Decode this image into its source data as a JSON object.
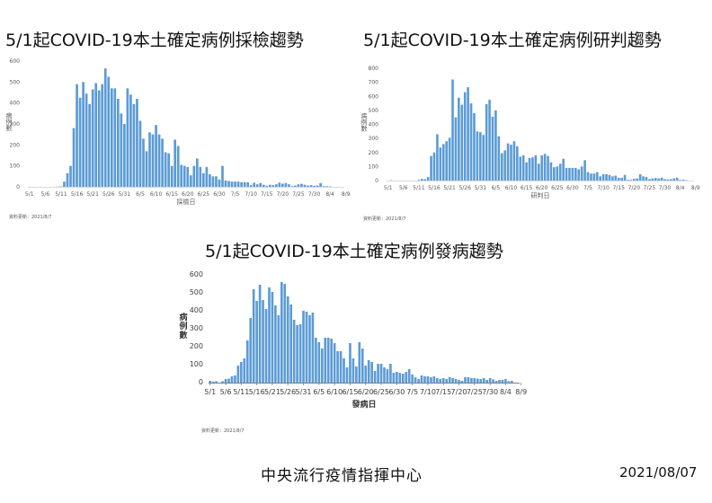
{
  "charts": {
    "testing": {
      "title": "5/1起COVID-19本土確定病例採檢趨勢",
      "ylabel": "病例數",
      "xlabel": "採檢日",
      "note": "資料更新：2021/8/7"
    },
    "confirm": {
      "title": "5/1起COVID-19本土確定病例研判趨勢",
      "ylabel": "病例數",
      "xlabel": "研判日",
      "note": "資料更新：2021/8/7"
    },
    "onset": {
      "title": "5/1起COVID-19本土確定病例發病趨勢",
      "ylabel": "病例數",
      "xlabel": "發病日",
      "note": "資料更新：2021/8/7"
    }
  },
  "footer": {
    "org": "中央流行疫情指揮中心",
    "date": "2021/08/07"
  },
  "colors": {
    "bar": "#5b9bd5",
    "axis": "#d9d9d9"
  },
  "chart_data": [
    {
      "type": "bar",
      "title": "5/1起COVID-19本土確定病例採檢趨勢",
      "xlabel": "採檢日",
      "ylabel": "病例數",
      "ylim": [
        0,
        600
      ],
      "yticks": [
        0,
        100,
        200,
        300,
        400,
        500,
        600
      ],
      "xticks": [
        "5/1",
        "5/6",
        "5/11",
        "5/16",
        "5/21",
        "5/26",
        "5/31",
        "6/5",
        "6/10",
        "6/15",
        "6/20",
        "6/25",
        "6/30",
        "7/5",
        "7/10",
        "7/15",
        "7/20",
        "7/25",
        "7/30",
        "8/4",
        "8/9"
      ],
      "grid": false,
      "values": [
        0,
        0,
        0,
        0,
        0,
        0,
        0,
        0,
        0,
        1,
        2,
        25,
        65,
        100,
        280,
        490,
        425,
        500,
        445,
        395,
        465,
        495,
        460,
        490,
        565,
        525,
        470,
        470,
        420,
        350,
        300,
        470,
        440,
        395,
        420,
        315,
        230,
        170,
        260,
        250,
        295,
        250,
        230,
        165,
        160,
        100,
        225,
        195,
        105,
        100,
        95,
        55,
        100,
        135,
        95,
        65,
        95,
        60,
        50,
        50,
        35,
        100,
        30,
        28,
        25,
        25,
        25,
        22,
        22,
        22,
        8,
        20,
        12,
        18,
        10,
        5,
        10,
        8,
        12,
        20,
        15,
        18,
        12,
        3,
        6,
        12,
        14,
        10,
        6,
        8,
        5,
        6,
        18,
        3,
        3,
        2,
        0,
        0,
        0,
        0
      ]
    },
    {
      "type": "bar",
      "title": "5/1起COVID-19本土確定病例研判趨勢",
      "xlabel": "研判日",
      "ylabel": "病例數",
      "ylim": [
        0,
        800
      ],
      "yticks": [
        0,
        100,
        200,
        300,
        400,
        500,
        600,
        700,
        800
      ],
      "xticks": [
        "5/1",
        "5/6",
        "5/11",
        "5/16",
        "5/21",
        "5/26",
        "5/31",
        "6/5",
        "6/10",
        "6/15",
        "6/20",
        "6/25",
        "6/30",
        "7/5",
        "7/10",
        "7/15",
        "7/20",
        "7/25",
        "7/30",
        "8/4",
        "8/9"
      ],
      "grid": false,
      "values": [
        0,
        2,
        0,
        0,
        0,
        0,
        0,
        0,
        0,
        0,
        5,
        12,
        10,
        25,
        175,
        200,
        330,
        235,
        260,
        280,
        305,
        720,
        450,
        590,
        540,
        630,
        665,
        550,
        480,
        350,
        345,
        325,
        545,
        575,
        455,
        500,
        315,
        195,
        215,
        265,
        255,
        280,
        245,
        170,
        180,
        130,
        160,
        165,
        180,
        120,
        180,
        190,
        175,
        130,
        95,
        100,
        120,
        155,
        90,
        90,
        90,
        90,
        80,
        100,
        145,
        60,
        50,
        50,
        60,
        30,
        45,
        45,
        40,
        30,
        35,
        20,
        20,
        40,
        5,
        5,
        12,
        15,
        45,
        30,
        25,
        10,
        15,
        18,
        15,
        20,
        10,
        8,
        10,
        15,
        20,
        4,
        6,
        2,
        0,
        0
      ]
    },
    {
      "type": "bar",
      "title": "5/1起COVID-19本土確定病例發病趨勢",
      "xlabel": "發病日",
      "ylabel": "病例數",
      "ylim": [
        0,
        600
      ],
      "yticks": [
        0,
        100,
        200,
        300,
        400,
        500,
        600
      ],
      "xticks": [
        "5/1",
        "5/6",
        "5/11",
        "5/16",
        "5/21",
        "5/26",
        "5/31",
        "6/5",
        "6/10",
        "6/15",
        "6/20",
        "6/25",
        "6/30",
        "7/5",
        "7/10",
        "7/15",
        "7/20",
        "7/25",
        "7/30",
        "8/4",
        "8/9"
      ],
      "grid": false,
      "values": [
        10,
        6,
        8,
        0,
        8,
        20,
        22,
        35,
        40,
        95,
        115,
        135,
        235,
        360,
        520,
        455,
        545,
        460,
        410,
        530,
        505,
        430,
        375,
        560,
        550,
        480,
        435,
        350,
        320,
        325,
        400,
        395,
        375,
        390,
        250,
        225,
        190,
        250,
        250,
        245,
        220,
        175,
        175,
        135,
        85,
        220,
        135,
        90,
        225,
        190,
        95,
        125,
        115,
        65,
        105,
        105,
        85,
        75,
        105,
        55,
        60,
        55,
        50,
        60,
        75,
        45,
        30,
        20,
        40,
        35,
        35,
        30,
        35,
        25,
        20,
        25,
        20,
        30,
        25,
        20,
        15,
        10,
        30,
        30,
        25,
        25,
        22,
        20,
        25,
        15,
        25,
        18,
        10,
        15,
        15,
        20,
        8,
        10,
        0,
        0
      ]
    }
  ]
}
